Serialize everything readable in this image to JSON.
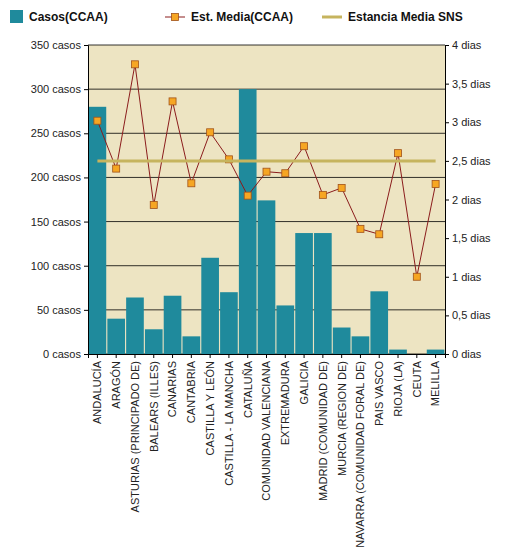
{
  "chart_data": {
    "type": "bar",
    "categories": [
      "ANDALUCÍA",
      "ARAGÓN",
      "ASTURIAS (PRINCIPADO DE)",
      "BALEARS (ILLES)",
      "CANARIAS",
      "CANTABRIA",
      "CASTILLA Y LEÓN",
      "CASTILLA - LA MANCHA",
      "CATALUÑA",
      "COMUNIDAD VALENCIANA",
      "EXTREMADURA",
      "GALICIA",
      "MADRID (COMUNIDAD DE)",
      "MURCIA (REGION DE)",
      "NAVARRA (COMUNIDAD FORAL DE)",
      "PAIS VASCO",
      "RIOJA (LA)",
      "CEUTA",
      "MELILLA"
    ],
    "series": [
      {
        "name": "Casos(CCAA)",
        "type": "bar",
        "color": "#1f8a9c",
        "values": [
          280,
          40,
          64,
          28,
          66,
          20,
          109,
          70,
          300,
          174,
          55,
          137,
          137,
          30,
          20,
          71,
          5,
          0,
          5
        ]
      },
      {
        "name": "Est. Media(CCAA)",
        "type": "line",
        "axis": "y2",
        "color": "#8b1c1c",
        "marker": "square",
        "values": [
          3.02,
          2.4,
          3.75,
          1.93,
          3.27,
          2.21,
          2.87,
          2.52,
          2.05,
          2.36,
          2.34,
          2.69,
          2.06,
          2.15,
          1.62,
          1.55,
          2.6,
          1.0,
          2.2
        ]
      },
      {
        "name": "Estancia Media SNS",
        "type": "line",
        "axis": "y2",
        "color": "#c6b45e",
        "marker": "none",
        "line_style": "solid",
        "values": [
          2.5,
          2.5,
          2.5,
          2.5,
          2.5,
          2.5,
          2.5,
          2.5,
          2.5,
          2.5,
          2.5,
          2.5,
          2.5,
          2.5,
          2.5,
          2.5,
          2.5,
          2.5,
          2.5
        ]
      }
    ],
    "ylim": [
      0,
      350
    ],
    "yticks": [
      {
        "value": 0,
        "label": "0 casos"
      },
      {
        "value": 50,
        "label": "50 casos"
      },
      {
        "value": 100,
        "label": "100 casos"
      },
      {
        "value": 150,
        "label": "150 casos"
      },
      {
        "value": 200,
        "label": "200 casos"
      },
      {
        "value": 250,
        "label": "250 casos"
      },
      {
        "value": 300,
        "label": "300 casos"
      },
      {
        "value": 350,
        "label": "350 casos"
      }
    ],
    "y2lim": [
      0,
      4
    ],
    "y2ticks": [
      {
        "value": 0,
        "label": "0 dias"
      },
      {
        "value": 0.5,
        "label": "0,5 dias"
      },
      {
        "value": 1,
        "label": "1 dias"
      },
      {
        "value": 1.5,
        "label": "1,5 dias"
      },
      {
        "value": 2,
        "label": "2 dias"
      },
      {
        "value": 2.5,
        "label": "2,5 dias"
      },
      {
        "value": 3,
        "label": "3 dias"
      },
      {
        "value": 3.5,
        "label": "3,5 dias"
      },
      {
        "value": 4,
        "label": "4 dias"
      }
    ],
    "grid": true,
    "legend": "top"
  }
}
